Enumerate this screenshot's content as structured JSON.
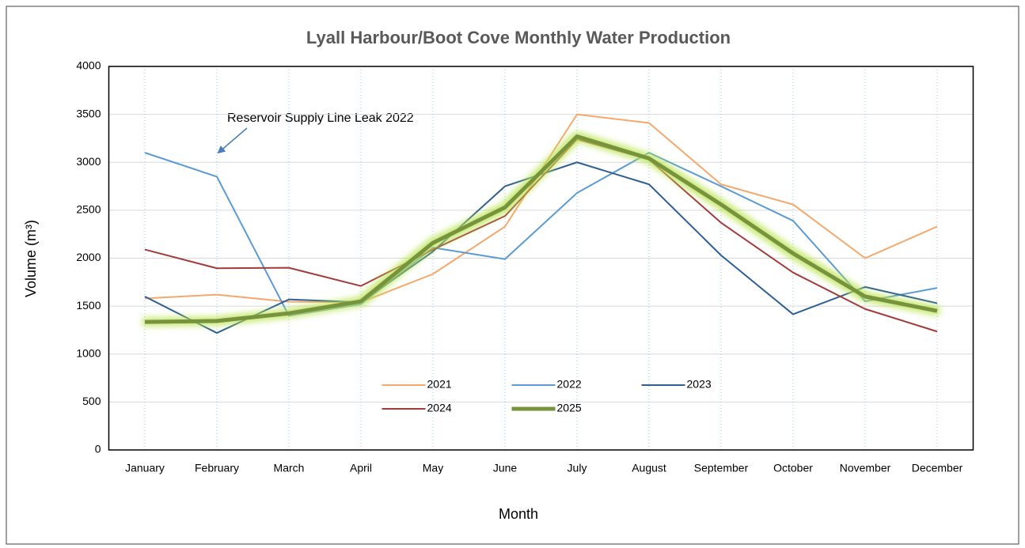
{
  "chart_data": {
    "type": "line",
    "title": "Lyall Harbour/Boot Cove Monthly Water Production",
    "x_label": "Month",
    "y_label": "Volume (m³)",
    "annotation": "Reservoir Supply Line Leak 2022",
    "categories": [
      "January",
      "February",
      "March",
      "April",
      "May",
      "June",
      "July",
      "August",
      "September",
      "October",
      "November",
      "December"
    ],
    "series": [
      {
        "name": "2021",
        "color": "#f4a86c",
        "values": [
          1580,
          1620,
          1545,
          1540,
          1835,
          2330,
          3500,
          3410,
          2770,
          2560,
          2000,
          2330
        ]
      },
      {
        "name": "2022",
        "color": "#5b9bd5",
        "values": [
          3100,
          2850,
          1400,
          1520,
          2110,
          1990,
          2680,
          3100,
          2750,
          2390,
          1550,
          1690
        ]
      },
      {
        "name": "2023",
        "color": "#2e5f95",
        "values": [
          1600,
          1220,
          1570,
          1540,
          2070,
          2750,
          3000,
          2770,
          2030,
          1415,
          1700,
          1530
        ]
      },
      {
        "name": "2024",
        "color": "#a33b3b",
        "values": [
          2090,
          1895,
          1900,
          1710,
          2090,
          2440,
          3240,
          3030,
          2370,
          1850,
          1470,
          1235
        ]
      },
      {
        "name": "2025",
        "color": "#77933c",
        "emphasis": true,
        "values": [
          1335,
          1345,
          1425,
          1550,
          2160,
          2530,
          3270,
          3040,
          2560,
          2050,
          1600,
          1450
        ]
      }
    ],
    "ylim": [
      0,
      4000
    ],
    "yticks": [
      0,
      500,
      1000,
      1500,
      2000,
      2500,
      3000,
      3500,
      4000
    ],
    "grid": true,
    "legend": "lower center"
  }
}
